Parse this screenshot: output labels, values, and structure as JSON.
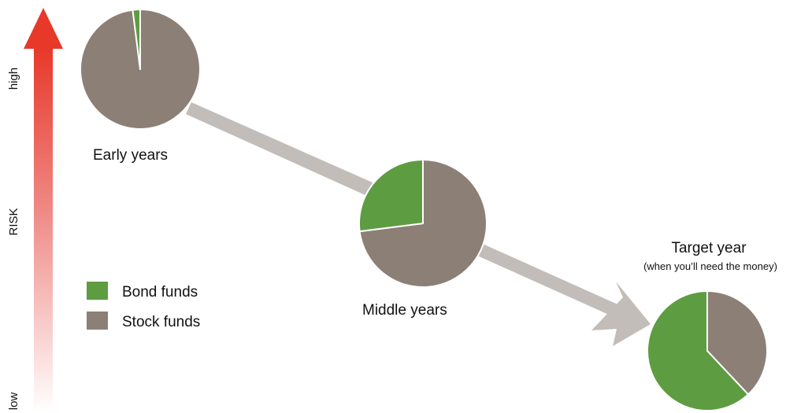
{
  "colors": {
    "bond": "#5e9c41",
    "stock": "#8c7f76",
    "path_arrow": "#c2bdb8",
    "risk_high": "#e8382a",
    "risk_low": "#ffffff"
  },
  "risk_axis": {
    "title": "RISK",
    "high_label": "high",
    "low_label": "low"
  },
  "legend": {
    "items": [
      {
        "label": "Bond funds",
        "color_key": "bond"
      },
      {
        "label": "Stock funds",
        "color_key": "stock"
      }
    ]
  },
  "stages": [
    {
      "label": "Early years",
      "sublabel": "",
      "bond_share": 0.02,
      "stock_share": 0.98
    },
    {
      "label": "Middle years",
      "sublabel": "",
      "bond_share": 0.27,
      "stock_share": 0.73
    },
    {
      "label": "Target year",
      "sublabel": "(when you’ll need the money)",
      "bond_share": 0.62,
      "stock_share": 0.38
    }
  ]
}
